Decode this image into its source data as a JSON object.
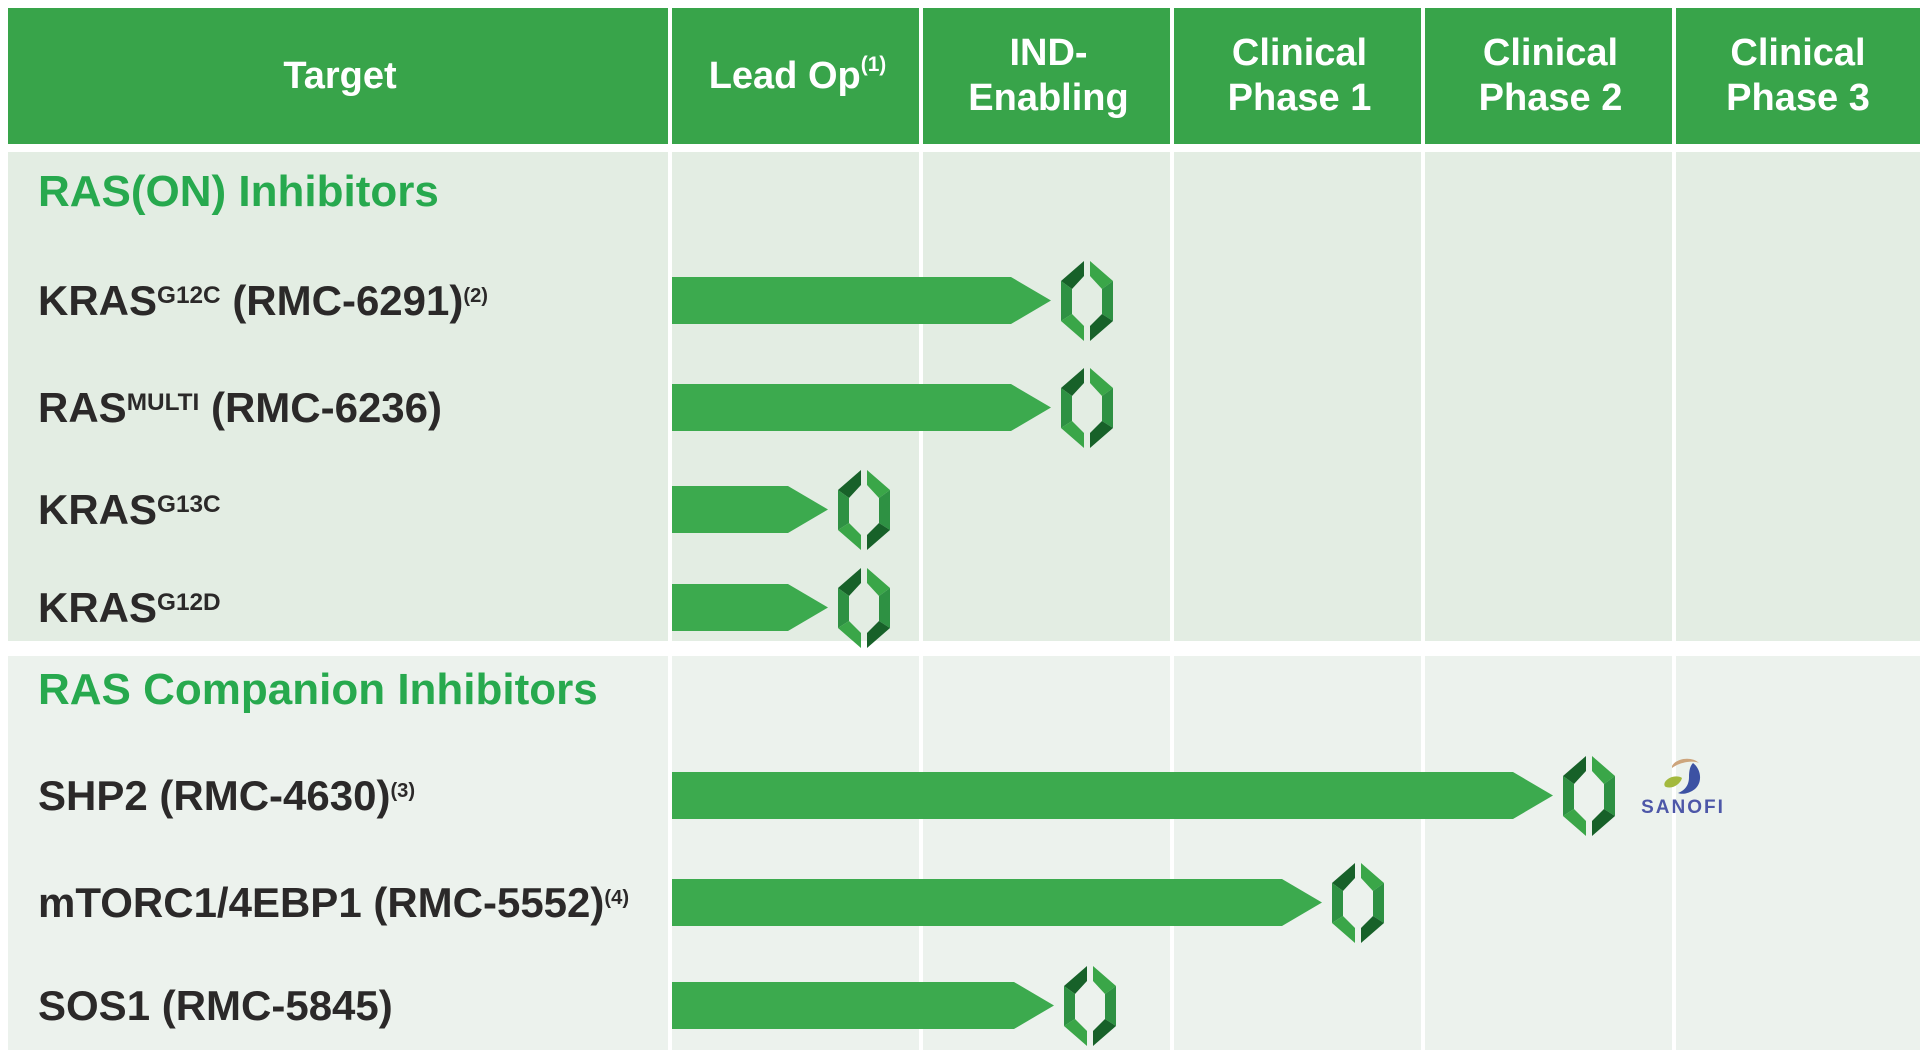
{
  "header": {
    "columns": [
      {
        "id": "target",
        "label": "Target",
        "sup": ""
      },
      {
        "id": "lead-op",
        "label": "Lead Op",
        "sup": "(1)"
      },
      {
        "id": "ind-enabling",
        "label": "IND-\nEnabling",
        "sup": ""
      },
      {
        "id": "clinical-phase-1",
        "label": "Clinical\nPhase 1",
        "sup": ""
      },
      {
        "id": "clinical-phase-2",
        "label": "Clinical\nPhase 2",
        "sup": ""
      },
      {
        "id": "clinical-phase-3",
        "label": "Clinical\nPhase 3",
        "sup": ""
      }
    ]
  },
  "chart_data": {
    "type": "gantt",
    "phase_columns": [
      "Lead Op",
      "IND-Enabling",
      "Clinical Phase 1",
      "Clinical Phase 2",
      "Clinical Phase 3"
    ],
    "bar_color": "#3caa4e",
    "sections": [
      {
        "id": "ras-on-inhibitors",
        "title": "RAS(ON) Inhibitors",
        "rows": [
          {
            "name": "KRAS G12C (RMC-6291)",
            "label_parts": [
              {
                "text": "KRAS"
              },
              {
                "text": "G12C",
                "sup": true
              },
              {
                "text": " (RMC-6291)"
              },
              {
                "text": "(2)",
                "sup": true,
                "footnote": true
              }
            ],
            "progress_phases": 1.51,
            "stage_reached": "IND-Enabling"
          },
          {
            "name": "RAS MULTI (RMC-6236)",
            "label_parts": [
              {
                "text": "RAS"
              },
              {
                "text": "MULTI",
                "sup": true
              },
              {
                "text": " (RMC-6236)"
              }
            ],
            "progress_phases": 1.51,
            "stage_reached": "IND-Enabling"
          },
          {
            "name": "KRAS G13C",
            "label_parts": [
              {
                "text": "KRAS"
              },
              {
                "text": "G13C",
                "sup": true
              }
            ],
            "progress_phases": 0.62,
            "stage_reached": "Lead Op"
          },
          {
            "name": "KRAS G12D",
            "label_parts": [
              {
                "text": "KRAS"
              },
              {
                "text": "G12D",
                "sup": true
              }
            ],
            "progress_phases": 0.62,
            "stage_reached": "Lead Op"
          }
        ]
      },
      {
        "id": "ras-companion-inhibitors",
        "title": "RAS Companion Inhibitors",
        "rows": [
          {
            "name": "SHP2 (RMC-4630)",
            "label_parts": [
              {
                "text": "SHP2 (RMC-4630)"
              },
              {
                "text": "(3)",
                "sup": true,
                "footnote": true
              }
            ],
            "progress_phases": 3.51,
            "stage_reached": "Clinical Phase 2",
            "partner": "SANOFI"
          },
          {
            "name": "mTORC1/4EBP1 (RMC-5552)",
            "label_parts": [
              {
                "text": "mTORC1/4EBP1 (RMC-5552)"
              },
              {
                "text": "(4)",
                "sup": true,
                "footnote": true
              }
            ],
            "progress_phases": 2.59,
            "stage_reached": "Clinical Phase 1"
          },
          {
            "name": "SOS1 (RMC-5845)",
            "label_parts": [
              {
                "text": "SOS1 (RMC-5845)"
              }
            ],
            "progress_phases": 1.52,
            "stage_reached": "IND-Enabling"
          }
        ]
      }
    ]
  },
  "colors": {
    "header_green": "#38a44a",
    "bar_green": "#3caa4e",
    "logo_dark_green": "#176129",
    "logo_mid_green": "#2e9143",
    "section1_bg": "#e3ede3",
    "section2_bg": "#ecf2ed",
    "section_title_green": "#27a94e",
    "row_label_color": "#2b2929",
    "sanofi_blue": "#4d57a8"
  },
  "logos": {
    "bar_end_marker": "Revolution Medicines mark",
    "partner_logo": "SANOFI"
  }
}
